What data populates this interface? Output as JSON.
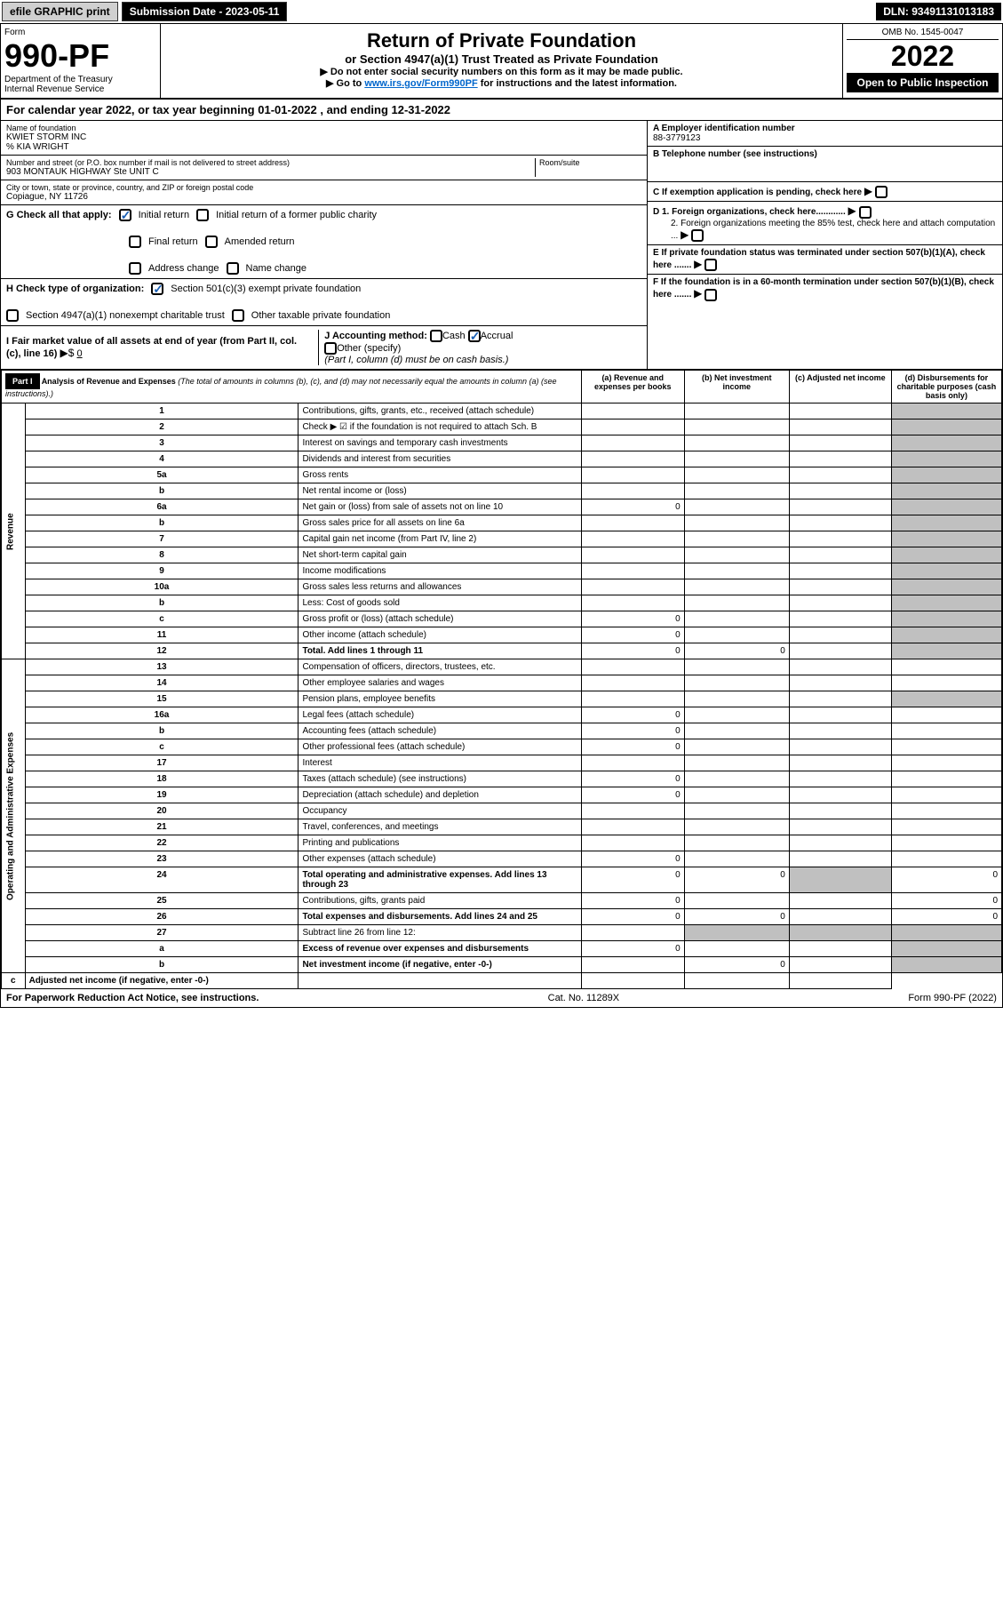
{
  "topbar": {
    "efile": "efile GRAPHIC print",
    "submission": "Submission Date - 2023-05-11",
    "dln": "DLN: 93491131013183"
  },
  "header": {
    "form_label": "Form",
    "form_no": "990-PF",
    "dept": "Department of the Treasury",
    "irs": "Internal Revenue Service",
    "title": "Return of Private Foundation",
    "subtitle": "or Section 4947(a)(1) Trust Treated as Private Foundation",
    "instr1": "▶ Do not enter social security numbers on this form as it may be made public.",
    "instr2_pre": "▶ Go to ",
    "instr2_link": "www.irs.gov/Form990PF",
    "instr2_post": " for instructions and the latest information.",
    "omb": "OMB No. 1545-0047",
    "year": "2022",
    "inspect": "Open to Public Inspection"
  },
  "calendar": {
    "text_pre": "For calendar year 2022, or tax year beginning ",
    "begin": "01-01-2022",
    "text_mid": " , and ending ",
    "end": "12-31-2022"
  },
  "entity": {
    "name_label": "Name of foundation",
    "name": "KWIET STORM INC",
    "care_of": "% KIA WRIGHT",
    "addr_label": "Number and street (or P.O. box number if mail is not delivered to street address)",
    "street": "903 MONTAUK HIGHWAY Ste UNIT C",
    "room_label": "Room/suite",
    "city_label": "City or town, state or province, country, and ZIP or foreign postal code",
    "city": "Copiague, NY  11726",
    "ein_label": "A Employer identification number",
    "ein": "88-3779123",
    "phone_label": "B Telephone number (see instructions)",
    "c_label": "C If exemption application is pending, check here",
    "d1_label": "D 1. Foreign organizations, check here............",
    "d2_label": "2. Foreign organizations meeting the 85% test, check here and attach computation ...",
    "e_label": "E  If private foundation status was terminated under section 507(b)(1)(A), check here .......",
    "f_label": "F  If the foundation is in a 60-month termination under section 507(b)(1)(B), check here ......."
  },
  "sectionG": {
    "label": "G Check all that apply:",
    "opts": [
      "Initial return",
      "Initial return of a former public charity",
      "Final return",
      "Amended return",
      "Address change",
      "Name change"
    ]
  },
  "sectionH": {
    "label": "H Check type of organization:",
    "opt1": "Section 501(c)(3) exempt private foundation",
    "opt2": "Section 4947(a)(1) nonexempt charitable trust",
    "opt3": "Other taxable private foundation"
  },
  "sectionI": {
    "label": "I Fair market value of all assets at end of year (from Part II, col. (c), line 16)",
    "value": "0"
  },
  "sectionJ": {
    "label": "J Accounting method:",
    "cash": "Cash",
    "accrual": "Accrual",
    "other": "Other (specify)",
    "note": "(Part I, column (d) must be on cash basis.)"
  },
  "part1": {
    "label": "Part I",
    "title": "Analysis of Revenue and Expenses",
    "note": "(The total of amounts in columns (b), (c), and (d) may not necessarily equal the amounts in column (a) (see instructions).)",
    "cols": {
      "a": "(a) Revenue and expenses per books",
      "b": "(b) Net investment income",
      "c": "(c) Adjusted net income",
      "d": "(d) Disbursements for charitable purposes (cash basis only)"
    }
  },
  "sections": {
    "revenue": "Revenue",
    "expenses": "Operating and Administrative Expenses"
  },
  "lines": [
    {
      "n": "1",
      "d": "Contributions, gifts, grants, etc., received (attach schedule)"
    },
    {
      "n": "2",
      "d": "Check ▶ ☑ if the foundation is not required to attach Sch. B"
    },
    {
      "n": "3",
      "d": "Interest on savings and temporary cash investments"
    },
    {
      "n": "4",
      "d": "Dividends and interest from securities"
    },
    {
      "n": "5a",
      "d": "Gross rents"
    },
    {
      "n": "b",
      "d": "Net rental income or (loss)"
    },
    {
      "n": "6a",
      "d": "Net gain or (loss) from sale of assets not on line 10",
      "a": "0"
    },
    {
      "n": "b",
      "d": "Gross sales price for all assets on line 6a"
    },
    {
      "n": "7",
      "d": "Capital gain net income (from Part IV, line 2)"
    },
    {
      "n": "8",
      "d": "Net short-term capital gain"
    },
    {
      "n": "9",
      "d": "Income modifications"
    },
    {
      "n": "10a",
      "d": "Gross sales less returns and allowances"
    },
    {
      "n": "b",
      "d": "Less: Cost of goods sold"
    },
    {
      "n": "c",
      "d": "Gross profit or (loss) (attach schedule)",
      "a": "0"
    },
    {
      "n": "11",
      "d": "Other income (attach schedule)",
      "a": "0"
    },
    {
      "n": "12",
      "d": "Total. Add lines 1 through 11",
      "a": "0",
      "b": "0",
      "bold": true
    },
    {
      "n": "13",
      "d": "Compensation of officers, directors, trustees, etc."
    },
    {
      "n": "14",
      "d": "Other employee salaries and wages"
    },
    {
      "n": "15",
      "d": "Pension plans, employee benefits"
    },
    {
      "n": "16a",
      "d": "Legal fees (attach schedule)",
      "a": "0"
    },
    {
      "n": "b",
      "d": "Accounting fees (attach schedule)",
      "a": "0"
    },
    {
      "n": "c",
      "d": "Other professional fees (attach schedule)",
      "a": "0"
    },
    {
      "n": "17",
      "d": "Interest"
    },
    {
      "n": "18",
      "d": "Taxes (attach schedule) (see instructions)",
      "a": "0"
    },
    {
      "n": "19",
      "d": "Depreciation (attach schedule) and depletion",
      "a": "0"
    },
    {
      "n": "20",
      "d": "Occupancy"
    },
    {
      "n": "21",
      "d": "Travel, conferences, and meetings"
    },
    {
      "n": "22",
      "d": "Printing and publications"
    },
    {
      "n": "23",
      "d": "Other expenses (attach schedule)",
      "a": "0"
    },
    {
      "n": "24",
      "d": "Total operating and administrative expenses. Add lines 13 through 23",
      "a": "0",
      "b": "0",
      "dv": "0",
      "bold": true
    },
    {
      "n": "25",
      "d": "Contributions, gifts, grants paid",
      "a": "0",
      "dv": "0"
    },
    {
      "n": "26",
      "d": "Total expenses and disbursements. Add lines 24 and 25",
      "a": "0",
      "b": "0",
      "dv": "0",
      "bold": true
    },
    {
      "n": "27",
      "d": "Subtract line 26 from line 12:"
    },
    {
      "n": "a",
      "d": "Excess of revenue over expenses and disbursements",
      "a": "0",
      "bold": true
    },
    {
      "n": "b",
      "d": "Net investment income (if negative, enter -0-)",
      "b": "0",
      "bold": true
    },
    {
      "n": "c",
      "d": "Adjusted net income (if negative, enter -0-)",
      "bold": true
    }
  ],
  "footer": {
    "left": "For Paperwork Reduction Act Notice, see instructions.",
    "mid": "Cat. No. 11289X",
    "right": "Form 990-PF (2022)"
  }
}
